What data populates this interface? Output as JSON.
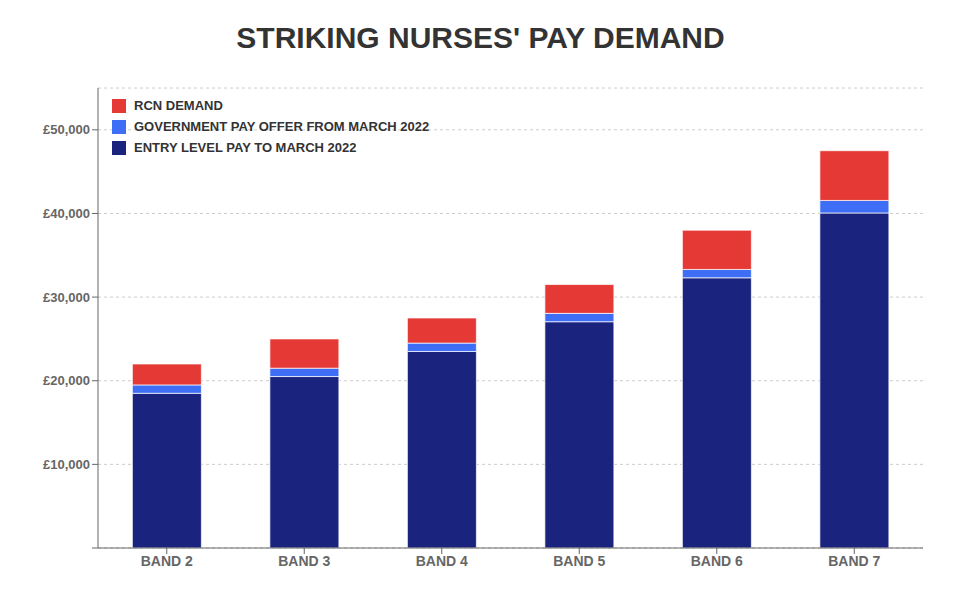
{
  "chart_data": {
    "type": "bar",
    "title": "STRIKING NURSES' PAY DEMAND",
    "categories": [
      "BAND 2",
      "BAND 3",
      "BAND 4",
      "BAND 5",
      "BAND 6",
      "BAND 7"
    ],
    "series": [
      {
        "name": "ENTRY LEVEL PAY TO MARCH 2022",
        "color": "#1a237e",
        "values": [
          18500,
          20500,
          23500,
          27055,
          32306,
          40057
        ]
      },
      {
        "name": "GOVERNMENT PAY OFFER FROM MARCH 2022",
        "color": "#3d6ef5",
        "values": [
          1000,
          1000,
          1000,
          1000,
          1000,
          1500
        ]
      },
      {
        "name": "RCN DEMAND",
        "color": "#e53935",
        "values": [
          2500,
          3500,
          3000,
          3445,
          4694,
          5943
        ]
      }
    ],
    "stacked": true,
    "ylim": [
      0,
      55000
    ],
    "yticks": [
      {
        "value": 0,
        "label": ""
      },
      {
        "value": 10000,
        "label": "£10,000"
      },
      {
        "value": 20000,
        "label": "£20,000"
      },
      {
        "value": 30000,
        "label": "£30,000"
      },
      {
        "value": 40000,
        "label": "£40,000"
      },
      {
        "value": 50000,
        "label": "£50,000"
      }
    ],
    "grid": true,
    "legend": "upper left"
  }
}
